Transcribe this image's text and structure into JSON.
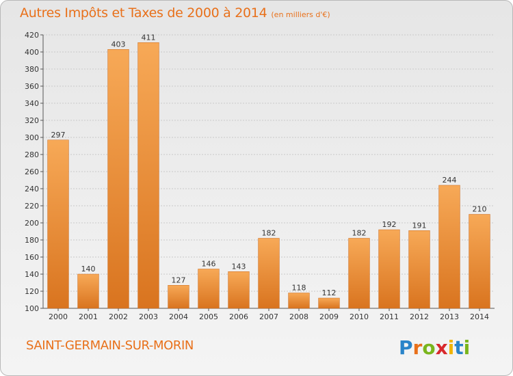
{
  "header": {
    "title": "Autres Impôts et Taxes de 2000 à 2014",
    "subtitle": "(en milliers d'€)"
  },
  "footer": {
    "commune": "SAINT-GERMAIN-SUR-MORIN",
    "logo_text": "Proxiti"
  },
  "colors": {
    "title": "#e8701a",
    "bar_light": "#f7a957",
    "bar_dark": "#d9741f",
    "grid": "#c9c9c9"
  },
  "chart_data": {
    "type": "bar",
    "categories": [
      "2000",
      "2001",
      "2002",
      "2003",
      "2004",
      "2005",
      "2006",
      "2007",
      "2008",
      "2009",
      "2010",
      "2011",
      "2012",
      "2013",
      "2014"
    ],
    "values": [
      297,
      140,
      403,
      411,
      127,
      146,
      143,
      182,
      118,
      112,
      182,
      192,
      191,
      244,
      210
    ],
    "ylim": [
      100,
      420
    ],
    "yticks": [
      100,
      120,
      140,
      160,
      180,
      200,
      220,
      240,
      260,
      280,
      300,
      320,
      340,
      360,
      380,
      400,
      420
    ],
    "grid": true
  }
}
